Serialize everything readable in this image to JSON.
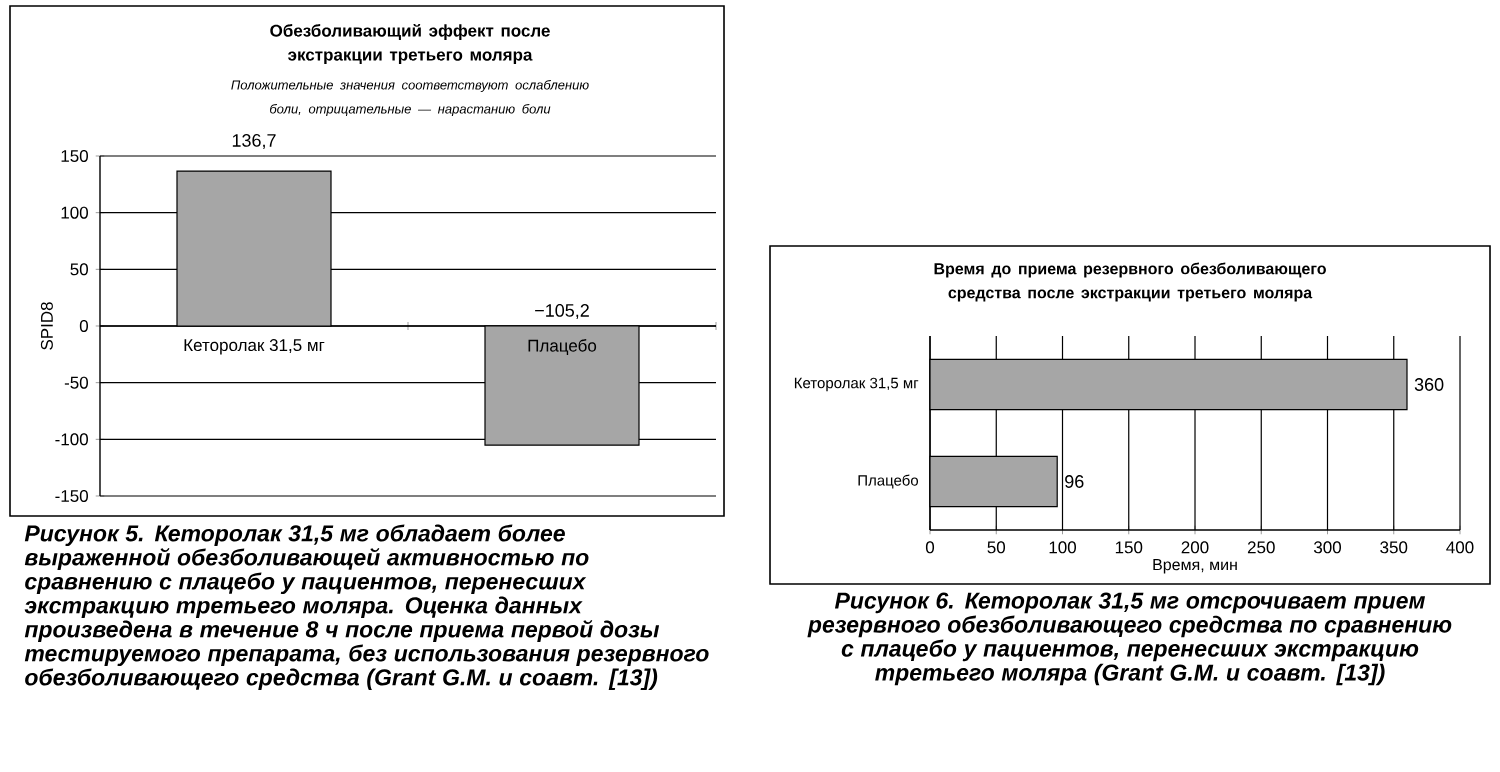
{
  "chart_data": [
    {
      "type": "bar",
      "title": "Обезболивающий эффект после экстракции третьего моляра",
      "subtitle": "Положительные значения соответствуют ослаблению боли, отрицательные — нарастанию боли",
      "ylabel": "SPID8",
      "categories": [
        "Кеторолак 31,5 мг",
        "Плацебо"
      ],
      "values": [
        136.7,
        -105.2
      ],
      "value_labels": [
        "136,7",
        "−105,2"
      ],
      "color": "#a6a6a6",
      "ylim": [
        -150,
        150
      ],
      "yticks": [
        -150,
        -100,
        -50,
        0,
        50,
        100,
        150
      ],
      "grid": "y",
      "annotations": [
        "Рисунок 5. Кеторолак 31,5 мг обладает более выраженной обезболивающей активностью по сравнению с плацебо у пациентов, перенесших экстракцию третьего моляра. Оценка данных произведена в течение 8 ч после приема первой дозы тестируемого препарата, без использования резервного обезболивающего средства (Grant G.M. и соавт. [13])"
      ]
    },
    {
      "type": "bar",
      "orientation": "horizontal",
      "title": "Время до приема резервного обезболивающего средства после экстракции третьего моляра",
      "xlabel": "Время, мин",
      "categories": [
        "Кеторолак 31,5 мг",
        "Плацебо"
      ],
      "values": [
        360,
        96
      ],
      "data_labels": true,
      "color": "#a6a6a6",
      "xlim": [
        0,
        400
      ],
      "xticks": [
        0,
        50,
        100,
        150,
        200,
        250,
        300,
        350,
        400
      ],
      "grid": "x",
      "annotations": [
        "Рисунок 6. Кеторолак 31,5 мг отсрочивает прием резервного обезболивающего средства по сравнению с плацебо у пациентов, перенесших экстракцию третьего моляра (Grant G.M. и соавт. [13])"
      ]
    }
  ]
}
